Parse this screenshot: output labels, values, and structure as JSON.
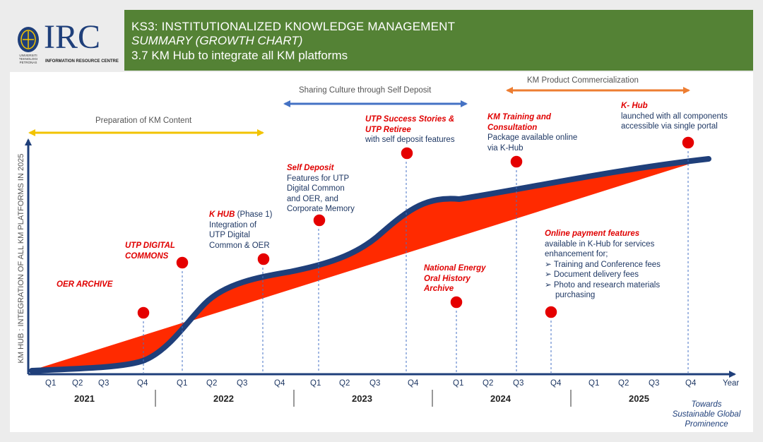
{
  "header": {
    "line1": "KS3: INSTITUTIONALIZED KNOWLEDGE MANAGEMENT",
    "line2": "SUMMARY (GROWTH CHART)",
    "line3": "3.7  KM Hub to integrate all KM platforms"
  },
  "logo": {
    "text": "IRC",
    "subtitle": "INFORMATION RESOURCE CENTRE",
    "seal_text": [
      "UNIVERSITI",
      "TEKNOLOGI",
      "PETRONAS"
    ]
  },
  "colors": {
    "header_green": "#548235",
    "curve_navy": "#1f3f7a",
    "fill_red": "#ff2a00",
    "dot_red": "#e50000"
  },
  "y_axis_title": "KM HUB : INTEGRATION OF ALL KM PLATFORMS IN 2025",
  "x_axis_end_label": "Year",
  "quarters": [
    "Q1",
    "Q2",
    "Q3",
    "Q4",
    "Q1",
    "Q2",
    "Q3",
    "Q4",
    "Q1",
    "Q2",
    "Q3",
    "Q4",
    "Q1",
    "Q2",
    "Q3",
    "Q4",
    "Q1",
    "Q2",
    "Q3",
    "Q4"
  ],
  "years": [
    "2021",
    "2022",
    "2023",
    "2024",
    "2025"
  ],
  "phases": {
    "prep": "Preparation of KM Content",
    "sharing": "Sharing Culture through Self Deposit",
    "commercial": "KM Product Commercialization"
  },
  "milestones": {
    "oer_archive": "OER ARCHIVE",
    "utp_digital_commons": [
      "UTP DIGITAL",
      "COMMONS"
    ],
    "khub_phase1": {
      "title": "K HUB",
      "suffix": " (Phase 1)",
      "lines": [
        "Integration of",
        "UTP Digital",
        "Common & OER"
      ]
    },
    "self_deposit": {
      "title": "Self Deposit",
      "lines": [
        "Features for UTP",
        "Digital Common",
        "and OER, and",
        "Corporate Memory"
      ]
    },
    "success_stories": {
      "title": [
        "UTP Success Stories &",
        "UTP Retiree"
      ],
      "lines": [
        "with self deposit features"
      ]
    },
    "national_energy": [
      "National Energy",
      "Oral History",
      "Archive"
    ],
    "km_training": {
      "title": [
        "KM Training and",
        "Consultation"
      ],
      "lines": [
        "Package available online",
        "via K-Hub"
      ]
    },
    "online_payment": {
      "title": "Online payment features",
      "lines": [
        "available in K-Hub for services",
        "enhancement for;"
      ],
      "bullets": [
        "Training and Conference fees",
        "Document delivery fees",
        "Photo and research materials"
      ],
      "bullet_cont": "purchasing"
    },
    "khub_final": {
      "title": "K- Hub",
      "lines": [
        "launched with all components",
        "accessible via single portal"
      ]
    }
  },
  "towards": [
    "Towards",
    "Sustainable Global",
    "Prominence"
  ]
}
